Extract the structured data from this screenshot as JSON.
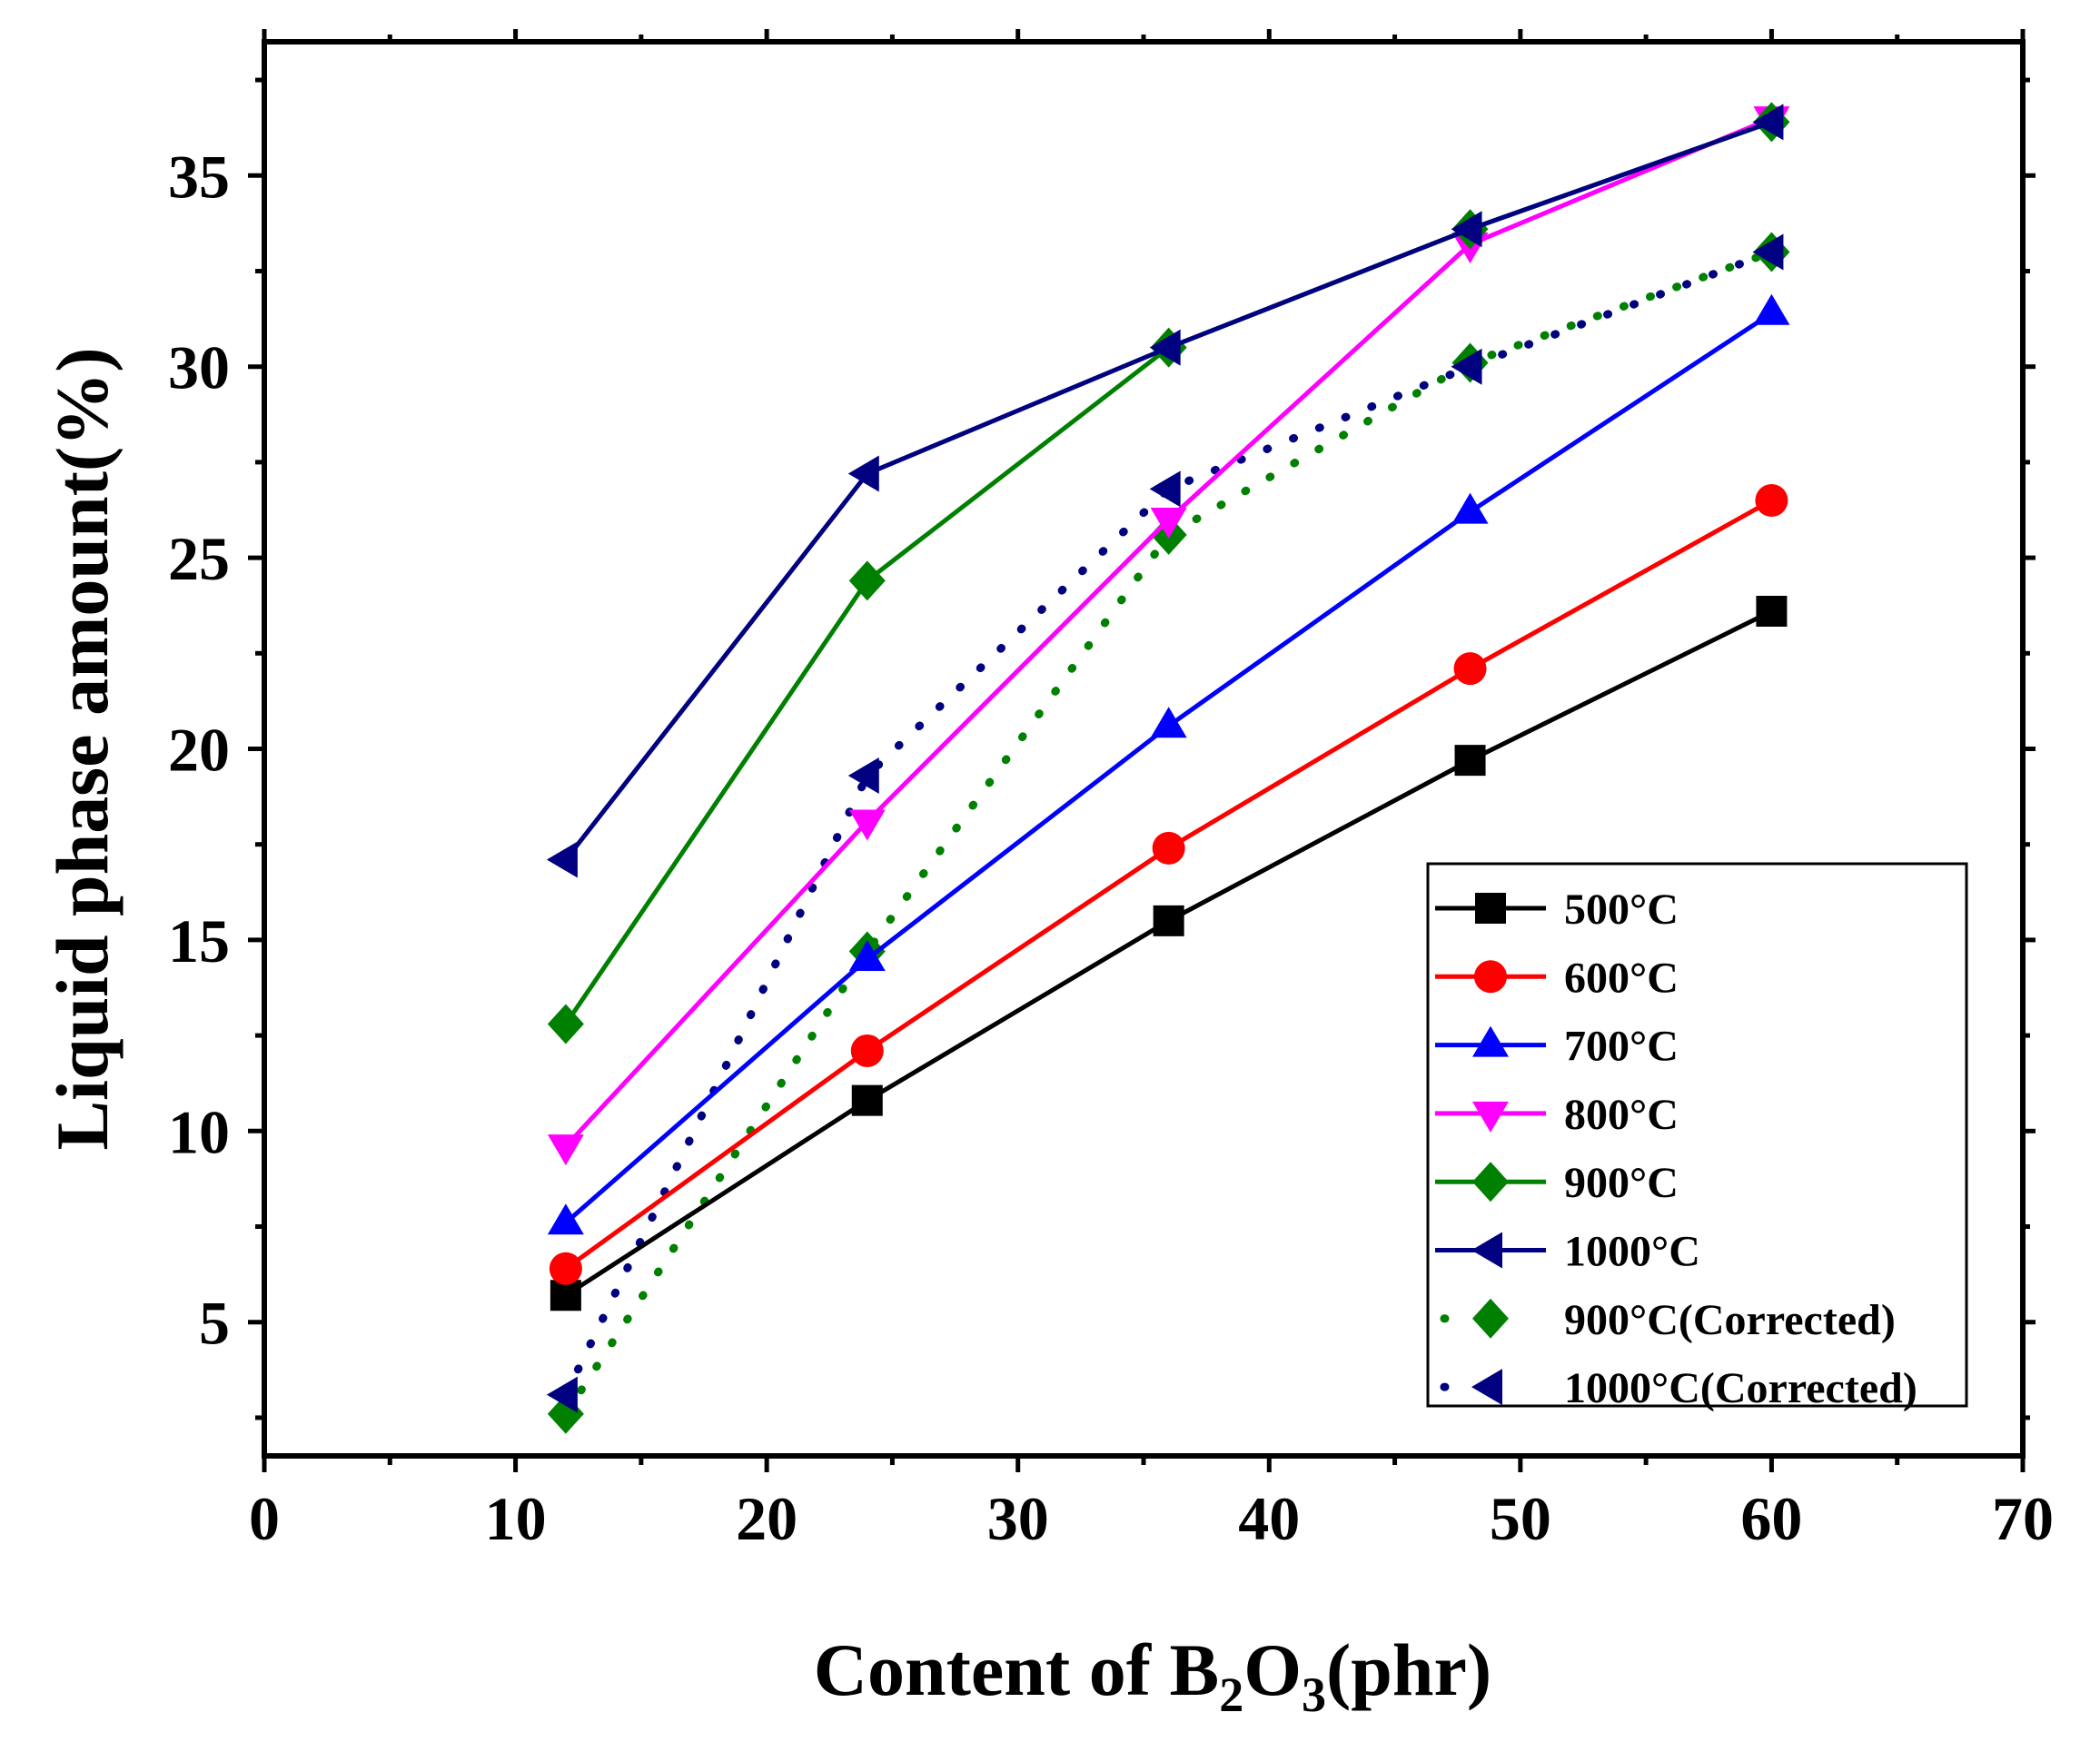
{
  "chart_data": {
    "type": "line",
    "title": "",
    "xlabel": {
      "pre": "Content of B",
      "sub1": "2",
      "mid": "O",
      "sub2": "3",
      "post": "(phr)"
    },
    "ylabel": "Liquid phase amount(%)",
    "xlim": [
      0,
      70
    ],
    "ylim": [
      1.5,
      38.5
    ],
    "xticks": [
      "0",
      "10",
      "20",
      "30",
      "40",
      "50",
      "60",
      "70"
    ],
    "xtick_values": [
      0,
      10,
      20,
      30,
      40,
      50,
      60,
      70
    ],
    "yticks": [
      "5",
      "10",
      "15",
      "20",
      "25",
      "30",
      "35"
    ],
    "ytick_values": [
      5,
      10,
      15,
      20,
      25,
      30,
      35
    ],
    "grid": false,
    "legend_position": "bottom-right",
    "x": [
      12,
      24,
      36,
      48,
      60
    ],
    "series": [
      {
        "name": "500°C",
        "values": [
          5.7,
          10.8,
          15.5,
          19.7,
          23.6
        ],
        "color": "#000000",
        "marker": "square",
        "line": "solid"
      },
      {
        "name": "600°C",
        "values": [
          6.4,
          12.1,
          17.4,
          22.1,
          26.5
        ],
        "color": "#ff0000",
        "marker": "circle",
        "line": "solid"
      },
      {
        "name": "700°C",
        "values": [
          7.6,
          14.5,
          20.6,
          26.2,
          31.4
        ],
        "color": "#0000ff",
        "marker": "triangle-up",
        "line": "solid"
      },
      {
        "name": "800°C",
        "values": [
          9.6,
          18.1,
          26.0,
          33.2,
          36.5
        ],
        "color": "#ff00ff",
        "marker": "triangle-down",
        "line": "solid"
      },
      {
        "name": "900°C",
        "values": [
          12.8,
          24.4,
          30.5,
          33.6,
          36.4
        ],
        "color": "#008000",
        "marker": "diamond",
        "line": "solid"
      },
      {
        "name": "1000°C",
        "values": [
          17.1,
          27.2,
          30.5,
          33.6,
          36.4
        ],
        "color": "#000080",
        "marker": "triangle-left",
        "line": "solid"
      },
      {
        "name": "900°C(Corrected)",
        "values": [
          2.6,
          14.7,
          25.6,
          30.1,
          33.0
        ],
        "color": "#008000",
        "marker": "diamond",
        "line": "dotted"
      },
      {
        "name": "1000°C(Corrected)",
        "values": [
          3.1,
          19.3,
          26.8,
          30.0,
          33.0
        ],
        "color": "#000080",
        "marker": "triangle-left",
        "line": "dotted"
      }
    ]
  }
}
